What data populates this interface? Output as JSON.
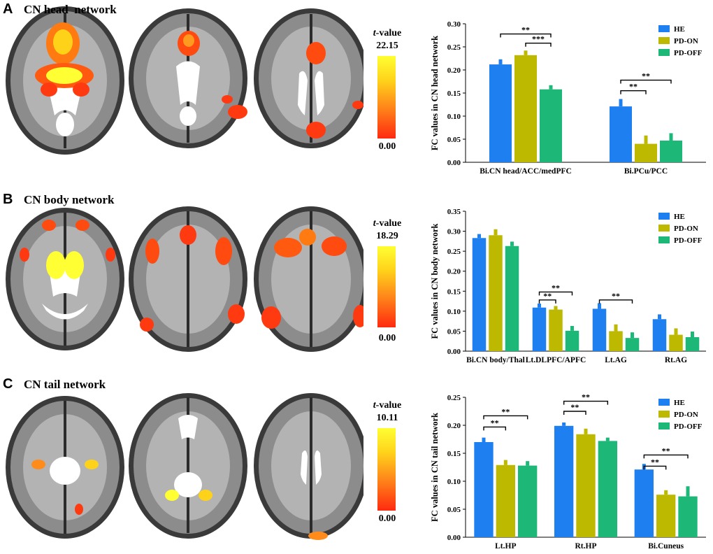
{
  "colors": {
    "HE": "#1e7ff0",
    "PD-ON": "#bdb800",
    "PD-OFF": "#1db878",
    "brainBorder": "#1a1a1a"
  },
  "panels": [
    {
      "letter": "A",
      "title": "CN head  network",
      "colorbar": {
        "label_prefix": "t",
        "label_suffix": "-value",
        "max": "22.15",
        "min": "0.00"
      },
      "chart_data": {
        "type": "bar",
        "ylabel": "FC values in CN head network",
        "ylim": [
          0,
          0.3
        ],
        "yticks": [
          "0.00",
          "0.05",
          "0.10",
          "0.15",
          "0.20",
          "0.25",
          "0.30"
        ],
        "categories": [
          "Bi.CN head/ACC/medPFC",
          "Bi.PCu/PCC"
        ],
        "series": [
          {
            "name": "HE",
            "values": [
              0.212,
              0.121
            ],
            "errors": [
              0.011,
              0.016
            ]
          },
          {
            "name": "PD-ON",
            "values": [
              0.232,
              0.04
            ],
            "errors": [
              0.01,
              0.018
            ]
          },
          {
            "name": "PD-OFF",
            "values": [
              0.158,
              0.047
            ],
            "errors": [
              0.009,
              0.016
            ]
          }
        ],
        "legend": "top-right",
        "significance": [
          {
            "cat": 0,
            "from": 0,
            "to": 2,
            "label": "**",
            "y": 0.278
          },
          {
            "cat": 0,
            "from": 1,
            "to": 2,
            "label": "***",
            "y": 0.258
          },
          {
            "cat": 1,
            "from": 0,
            "to": 2,
            "label": "**",
            "y": 0.178
          },
          {
            "cat": 1,
            "from": 0,
            "to": 1,
            "label": "**",
            "y": 0.155
          }
        ]
      }
    },
    {
      "letter": "B",
      "title": "CN body network",
      "colorbar": {
        "label_prefix": "t",
        "label_suffix": "-value",
        "max": "18.29",
        "min": "0.00"
      },
      "chart_data": {
        "type": "bar",
        "ylabel": "FC values in CN body network",
        "ylim": [
          0,
          0.35
        ],
        "yticks": [
          "0.00",
          "0.05",
          "0.10",
          "0.15",
          "0.20",
          "0.25",
          "0.30",
          "0.35"
        ],
        "categories": [
          "Bi.CN body/Thal",
          "Lt.DLPFC/APFC",
          "Lt.AG",
          "Rt.AG"
        ],
        "series": [
          {
            "name": "HE",
            "values": [
              0.283,
              0.109,
              0.106,
              0.08
            ],
            "errors": [
              0.01,
              0.01,
              0.014,
              0.012
            ]
          },
          {
            "name": "PD-ON",
            "values": [
              0.29,
              0.104,
              0.05,
              0.041
            ],
            "errors": [
              0.015,
              0.009,
              0.017,
              0.016
            ]
          },
          {
            "name": "PD-OFF",
            "values": [
              0.263,
              0.051,
              0.033,
              0.035
            ],
            "errors": [
              0.011,
              0.012,
              0.014,
              0.014
            ]
          }
        ],
        "legend": "top-right",
        "significance": [
          {
            "cat": 1,
            "from": 0,
            "to": 2,
            "label": "**",
            "y": 0.148
          },
          {
            "cat": 1,
            "from": 0,
            "to": 1,
            "label": "**",
            "y": 0.128
          },
          {
            "cat": 2,
            "from": 0,
            "to": 2,
            "label": "**",
            "y": 0.128
          }
        ]
      }
    },
    {
      "letter": "C",
      "title": "CN tail network",
      "colorbar": {
        "label_prefix": "t",
        "label_suffix": "-value",
        "max": "10.11",
        "min": "0.00"
      },
      "chart_data": {
        "type": "bar",
        "ylabel": "FC values in CN tail network",
        "ylim": [
          0,
          0.25
        ],
        "yticks": [
          "0.00",
          "0.05",
          "0.10",
          "0.15",
          "0.20",
          "0.25"
        ],
        "categories": [
          "Lt.HP",
          "Rt.HP",
          "Bi.Cuneus"
        ],
        "series": [
          {
            "name": "HE",
            "values": [
              0.17,
              0.199,
              0.121
            ],
            "errors": [
              0.008,
              0.006,
              0.01
            ]
          },
          {
            "name": "PD-ON",
            "values": [
              0.129,
              0.184,
              0.076
            ],
            "errors": [
              0.009,
              0.01,
              0.008
            ]
          },
          {
            "name": "PD-OFF",
            "values": [
              0.128,
              0.172,
              0.073
            ],
            "errors": [
              0.008,
              0.006,
              0.018
            ]
          }
        ],
        "legend": "top-right",
        "significance": [
          {
            "cat": 0,
            "from": 0,
            "to": 2,
            "label": "**",
            "y": 0.217
          },
          {
            "cat": 0,
            "from": 0,
            "to": 1,
            "label": "**",
            "y": 0.197
          },
          {
            "cat": 1,
            "from": 0,
            "to": 2,
            "label": "**",
            "y": 0.243
          },
          {
            "cat": 1,
            "from": 0,
            "to": 1,
            "label": "**",
            "y": 0.225
          },
          {
            "cat": 2,
            "from": 0,
            "to": 2,
            "label": "**",
            "y": 0.147
          },
          {
            "cat": 2,
            "from": 0,
            "to": 1,
            "label": "**",
            "y": 0.127
          }
        ]
      }
    }
  ]
}
